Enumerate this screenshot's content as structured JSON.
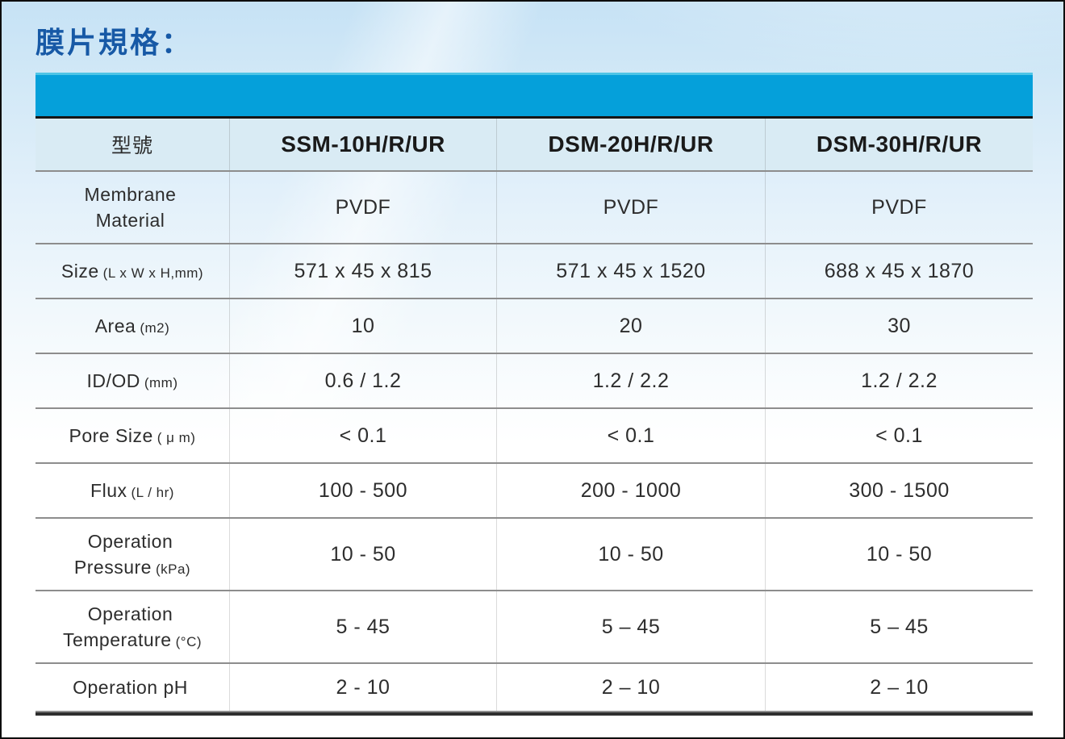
{
  "title": "膜片規格：",
  "colors": {
    "accent_bar": "#05A0DA",
    "accent_bar_top_edge": "#4EC5E6",
    "header_row_bg": "#D9EBF4",
    "title_blue": "#1759A6",
    "row_divider": "#8D8D8D",
    "text": "#2D2D2D"
  },
  "table": {
    "columns": [
      "型號",
      "SSM-10H/R/UR",
      "DSM-20H/R/UR",
      "DSM-30H/R/UR"
    ],
    "rows": [
      {
        "l1": "Membrane",
        "l2": "Material",
        "values": [
          "PVDF",
          "PVDF",
          "PVDF"
        ]
      },
      {
        "l1": "Size",
        "l1s": "(L x W x H,mm)",
        "values": [
          "571 x 45 x 815",
          "571 x 45 x 1520",
          "688 x 45 x 1870"
        ]
      },
      {
        "l1": "Area",
        "l1s": "(m2)",
        "values": [
          "10",
          "20",
          "30"
        ]
      },
      {
        "l1": "ID/OD",
        "l1s": "(mm)",
        "values": [
          "0.6 / 1.2",
          "1.2 / 2.2",
          "1.2 / 2.2"
        ]
      },
      {
        "l1": "Pore Size",
        "l1s": "( μ m)",
        "values": [
          "< 0.1",
          "< 0.1",
          "< 0.1"
        ]
      },
      {
        "l1": "Flux",
        "l1s": "(L / hr)",
        "values": [
          "100 - 500",
          "200 - 1000",
          "300 - 1500"
        ]
      },
      {
        "l1": "Operation",
        "l2": "Pressure",
        "l2s": "(kPa)",
        "values": [
          "10 - 50",
          "10 - 50",
          "10 - 50"
        ]
      },
      {
        "l1": "Operation",
        "l2": "Temperature",
        "l2s": "(°C)",
        "values": [
          "5 - 45",
          "5 – 45",
          "5 – 45"
        ]
      },
      {
        "l1": "Operation pH",
        "values": [
          "2 - 10",
          "2 – 10",
          "2 – 10"
        ]
      }
    ]
  }
}
